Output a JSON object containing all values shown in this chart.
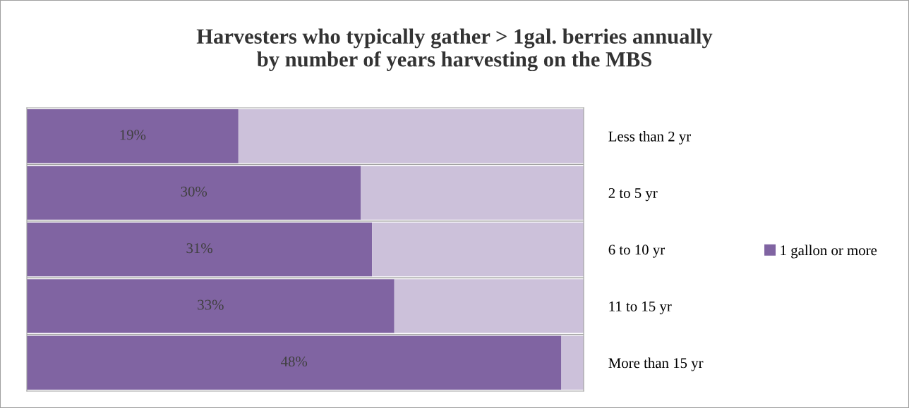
{
  "chart_data": {
    "type": "bar",
    "orientation": "horizontal",
    "stacked": true,
    "title": "Harvesters who typically gather > 1gal. berries annually\nby number of years harvesting on the MBS",
    "categories": [
      "Less than 2 yr",
      "2 to 5 yr",
      "6 to 10 yr",
      "11 to 15 yr",
      "More than 15 yr"
    ],
    "series": [
      {
        "name": "1 gallon or more",
        "color": "#8064a2",
        "values": [
          19,
          30,
          31,
          33,
          48
        ],
        "value_labels": [
          "19%",
          "30%",
          "31%",
          "33%",
          "48%"
        ]
      },
      {
        "color": "#ccc1da",
        "values": [
          31,
          20,
          19,
          17,
          2
        ]
      }
    ],
    "xlim": [
      0,
      50
    ],
    "tick_labels": "y",
    "legend": "right",
    "grid": false
  }
}
